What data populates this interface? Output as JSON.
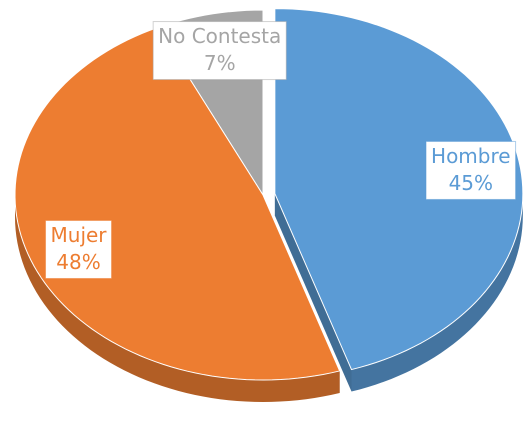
{
  "chart_data": {
    "type": "pie",
    "categories": [
      "Hombre",
      "Mujer",
      "No Contesta"
    ],
    "values": [
      45,
      48,
      7
    ],
    "value_labels": [
      "45%",
      "48%",
      "7%"
    ],
    "colors": [
      "#5b9bd5",
      "#ed7d31",
      "#a5a5a5"
    ],
    "exploded": [
      true,
      false,
      false
    ]
  }
}
